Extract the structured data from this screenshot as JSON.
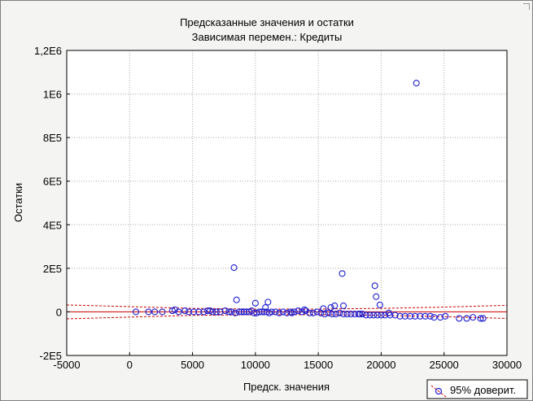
{
  "chart_data": {
    "type": "scatter",
    "title": "Предсказанные значения и остатки",
    "subtitle": "Зависимая перемен.: Кредиты",
    "xlabel": "Предск. значения",
    "ylabel": "Остатки",
    "xlim": [
      -5000,
      30000
    ],
    "ylim": [
      -200000,
      1200000
    ],
    "x_ticks": [
      -5000,
      0,
      5000,
      10000,
      15000,
      20000,
      25000,
      30000
    ],
    "x_tick_labels": [
      "-5000",
      "0",
      "5000",
      "10000",
      "15000",
      "20000",
      "25000",
      "30000"
    ],
    "y_ticks": [
      -200000,
      0,
      200000,
      400000,
      600000,
      800000,
      1000000,
      1200000
    ],
    "y_tick_labels": [
      "-2E5",
      "0",
      "2E5",
      "4E5",
      "6E5",
      "8E5",
      "1E6",
      "1,2E6"
    ],
    "grid": true,
    "legend": {
      "position": "bottom-right",
      "label": "95% доверит."
    },
    "colors": {
      "points": "#1f1fd0",
      "fit_line": "#cc0000",
      "confidence": "#cc0000",
      "grid": "#a8a8a8",
      "frame": "#000000",
      "plot_bg": "#ffffff",
      "window_bg": "#f4f4f2"
    },
    "fit_line": {
      "x": [
        -5000,
        30000
      ],
      "y": [
        0,
        0
      ]
    },
    "confidence_upper": {
      "x": [
        -5000,
        0,
        5000,
        10000,
        15000,
        20000,
        25000,
        30000
      ],
      "y": [
        32000,
        24000,
        16000,
        13000,
        13000,
        16000,
        22000,
        30000
      ]
    },
    "confidence_lower": {
      "x": [
        -5000,
        0,
        5000,
        10000,
        15000,
        20000,
        25000,
        30000
      ],
      "y": [
        -32000,
        -24000,
        -16000,
        -13000,
        -13000,
        -16000,
        -22000,
        -30000
      ]
    },
    "points": {
      "x": [
        500,
        1500,
        2000,
        2600,
        3400,
        3600,
        3900,
        4400,
        4700,
        5100,
        5500,
        5900,
        6200,
        6600,
        6900,
        7200,
        7600,
        7900,
        8100,
        8400,
        8700,
        8900,
        9100,
        9300,
        9500,
        9700,
        9900,
        10100,
        10300,
        10500,
        10700,
        10900,
        11100,
        11300,
        11600,
        11900,
        12200,
        12500,
        12800,
        13100,
        13400,
        13700,
        14000,
        14300,
        14600,
        14900,
        15200,
        15500,
        15800,
        16100,
        16400,
        16700,
        17000,
        17300,
        17600,
        17900,
        18200,
        18500,
        18800,
        19100,
        19400,
        19700,
        20000,
        20300,
        20700,
        21100,
        21500,
        21900,
        22300,
        22700,
        23100,
        23500,
        24200,
        24700,
        25100,
        26200,
        26800,
        27300,
        27900,
        28100,
        8300,
        8500,
        10000,
        10800,
        11000,
        16000,
        16300,
        16900,
        17000,
        19500,
        19600,
        19900,
        22800,
        13900,
        12900,
        6400,
        15400,
        18300,
        20600,
        23900
      ],
      "y": [
        0,
        0,
        0,
        0,
        5000,
        10000,
        0,
        5000,
        0,
        0,
        0,
        0,
        5000,
        0,
        0,
        0,
        5000,
        0,
        0,
        -5000,
        0,
        0,
        0,
        0,
        0,
        5000,
        -5000,
        -5000,
        0,
        0,
        0,
        0,
        -5000,
        0,
        0,
        -5000,
        0,
        -5000,
        0,
        0,
        5000,
        0,
        5000,
        -5000,
        -5000,
        0,
        -5000,
        -10000,
        -5000,
        -10000,
        -10000,
        -5000,
        -10000,
        -10000,
        -10000,
        -10000,
        -10000,
        -10000,
        -15000,
        -15000,
        -15000,
        -15000,
        -15000,
        -15000,
        -15000,
        -15000,
        -20000,
        -20000,
        -20000,
        -20000,
        -20000,
        -20000,
        -25000,
        -25000,
        -20000,
        -30000,
        -30000,
        -25000,
        -30000,
        -30000,
        203000,
        55000,
        40000,
        20000,
        45000,
        20000,
        28000,
        176000,
        28000,
        120000,
        70000,
        32000,
        1050000,
        10000,
        -5000,
        5000,
        15000,
        -10000,
        -5000,
        -20000
      ]
    }
  }
}
